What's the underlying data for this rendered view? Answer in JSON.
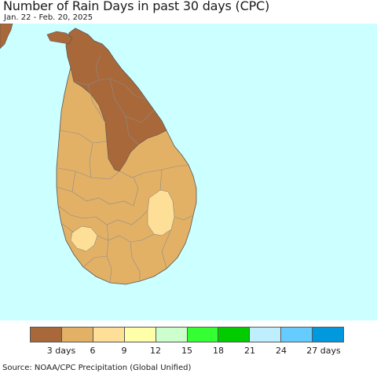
{
  "title": "Number of Rain Days in past 30 days (CPC)",
  "subtitle": "Jan. 22 - Feb. 20, 2025",
  "source": "Source: NOAA/CPC Precipitation (Global Unified)",
  "colors": {
    "ocean": "#ccffff",
    "band_0_3": "#a8683a",
    "band_3_6": "#e3b165",
    "band_6_9": "#fedf98",
    "boundary": "#8c8c8c"
  },
  "legend": {
    "colors": [
      "#a8683a",
      "#e3b165",
      "#fedf98",
      "#ffffaa",
      "#ccffcc",
      "#33ff33",
      "#00cc00",
      "#bfefff",
      "#66ccff",
      "#0099dd"
    ],
    "tick_labels": [
      "3 days",
      "6",
      "9",
      "12",
      "15",
      "18",
      "21",
      "24",
      "27 days"
    ]
  }
}
